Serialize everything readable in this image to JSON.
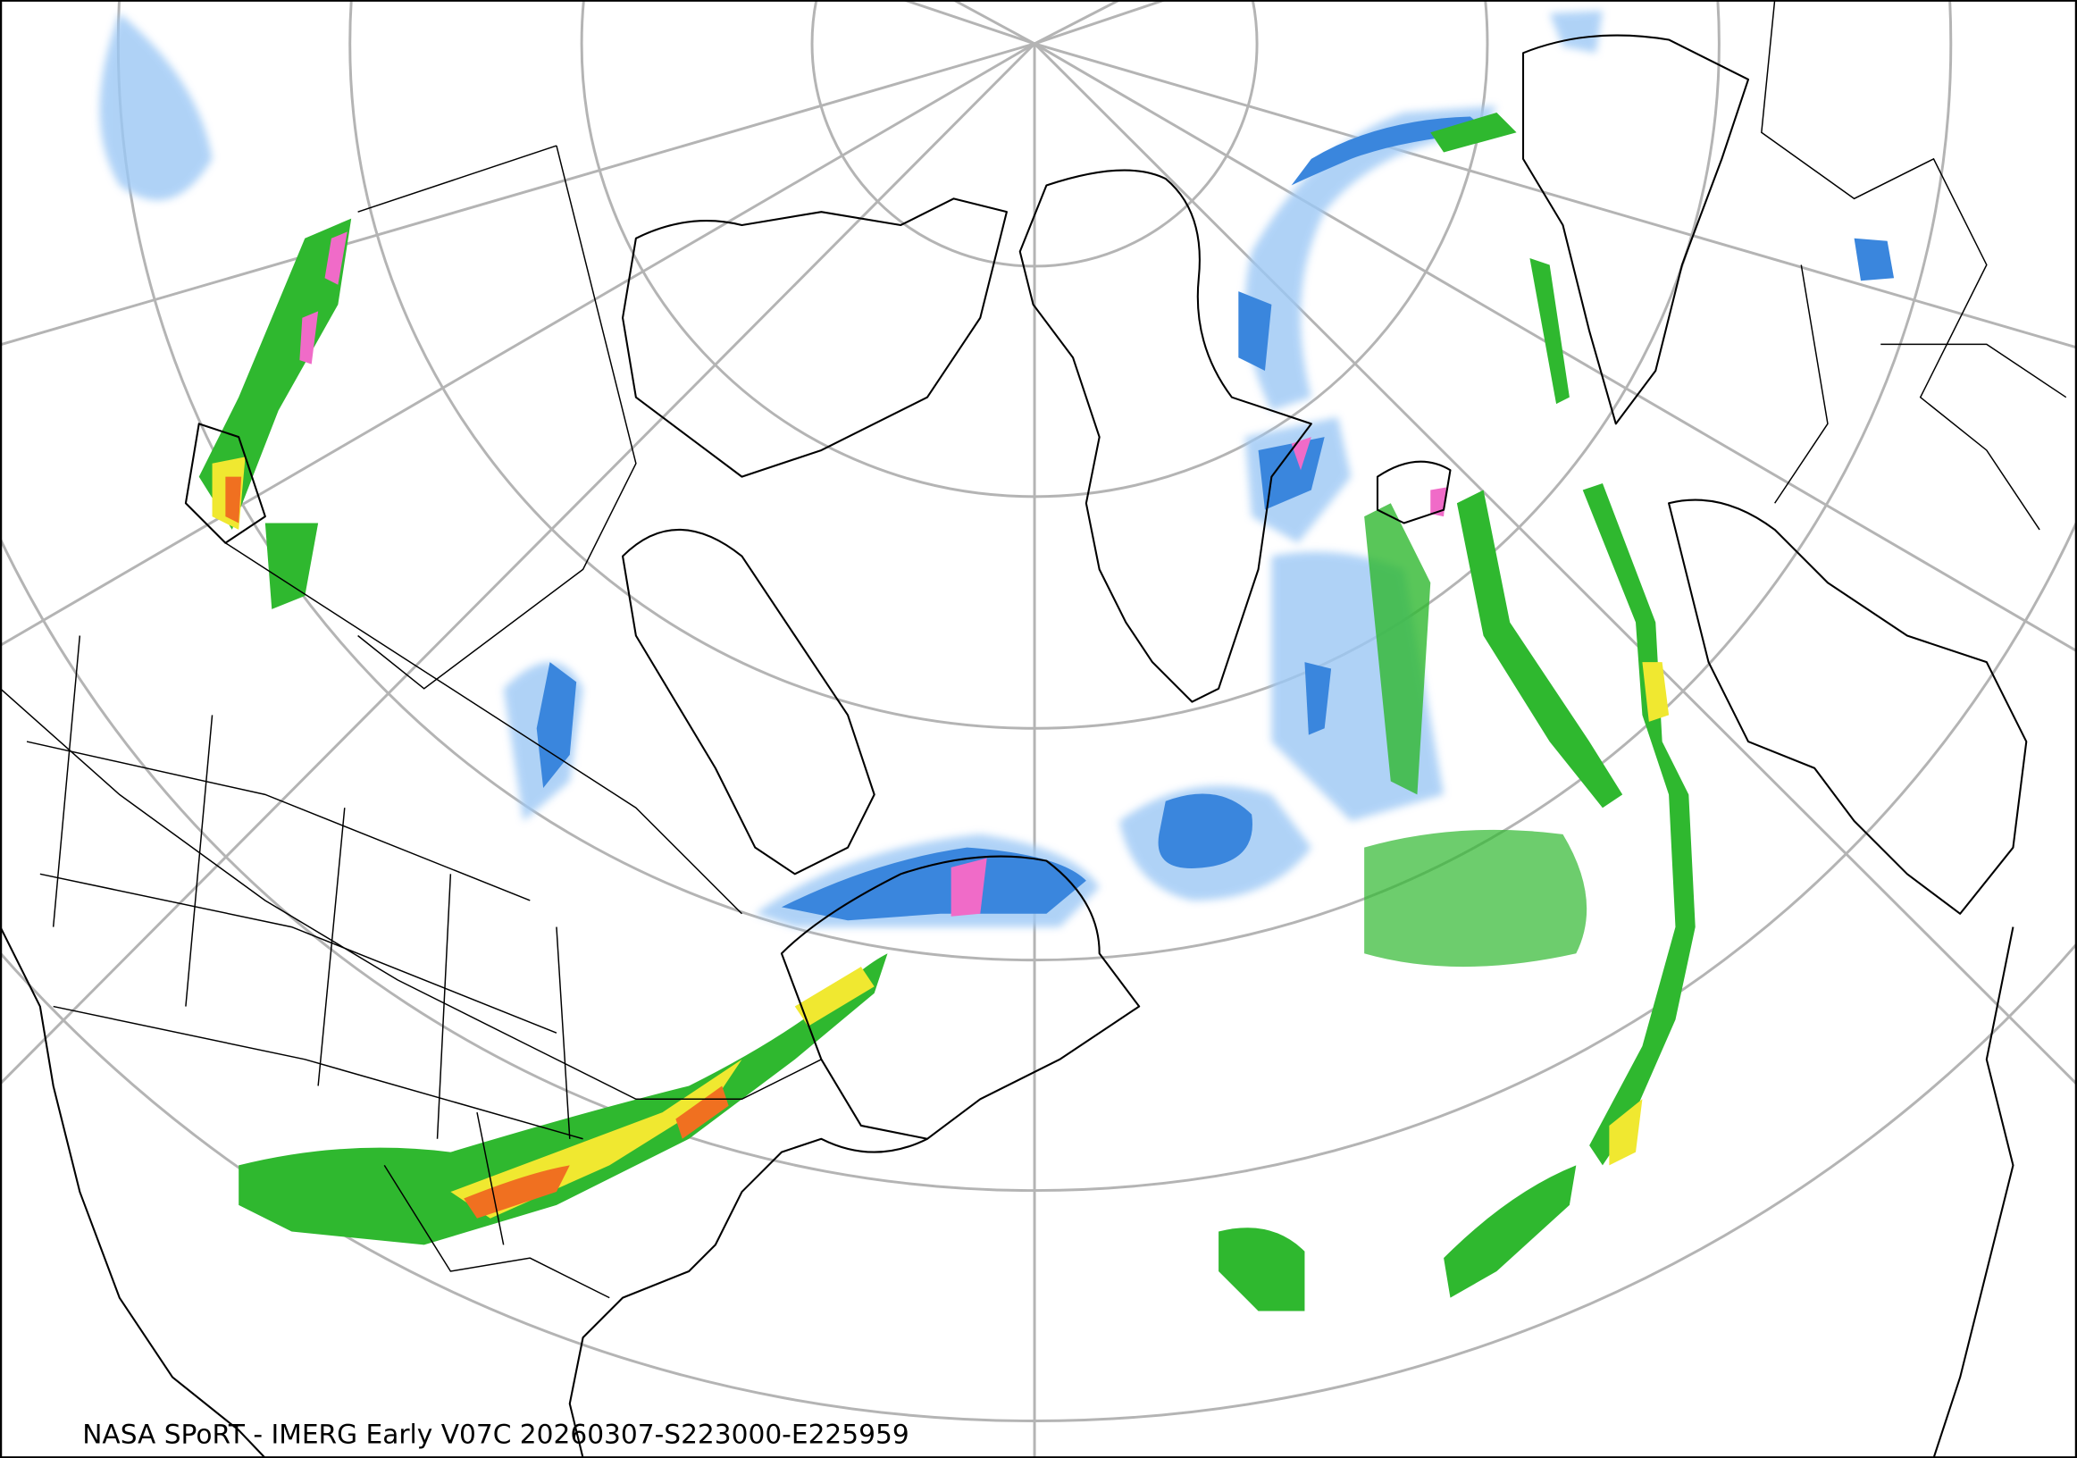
{
  "caption": "NASA SPoRT - IMERG Early V07C 20260307-S223000-E225959"
}
